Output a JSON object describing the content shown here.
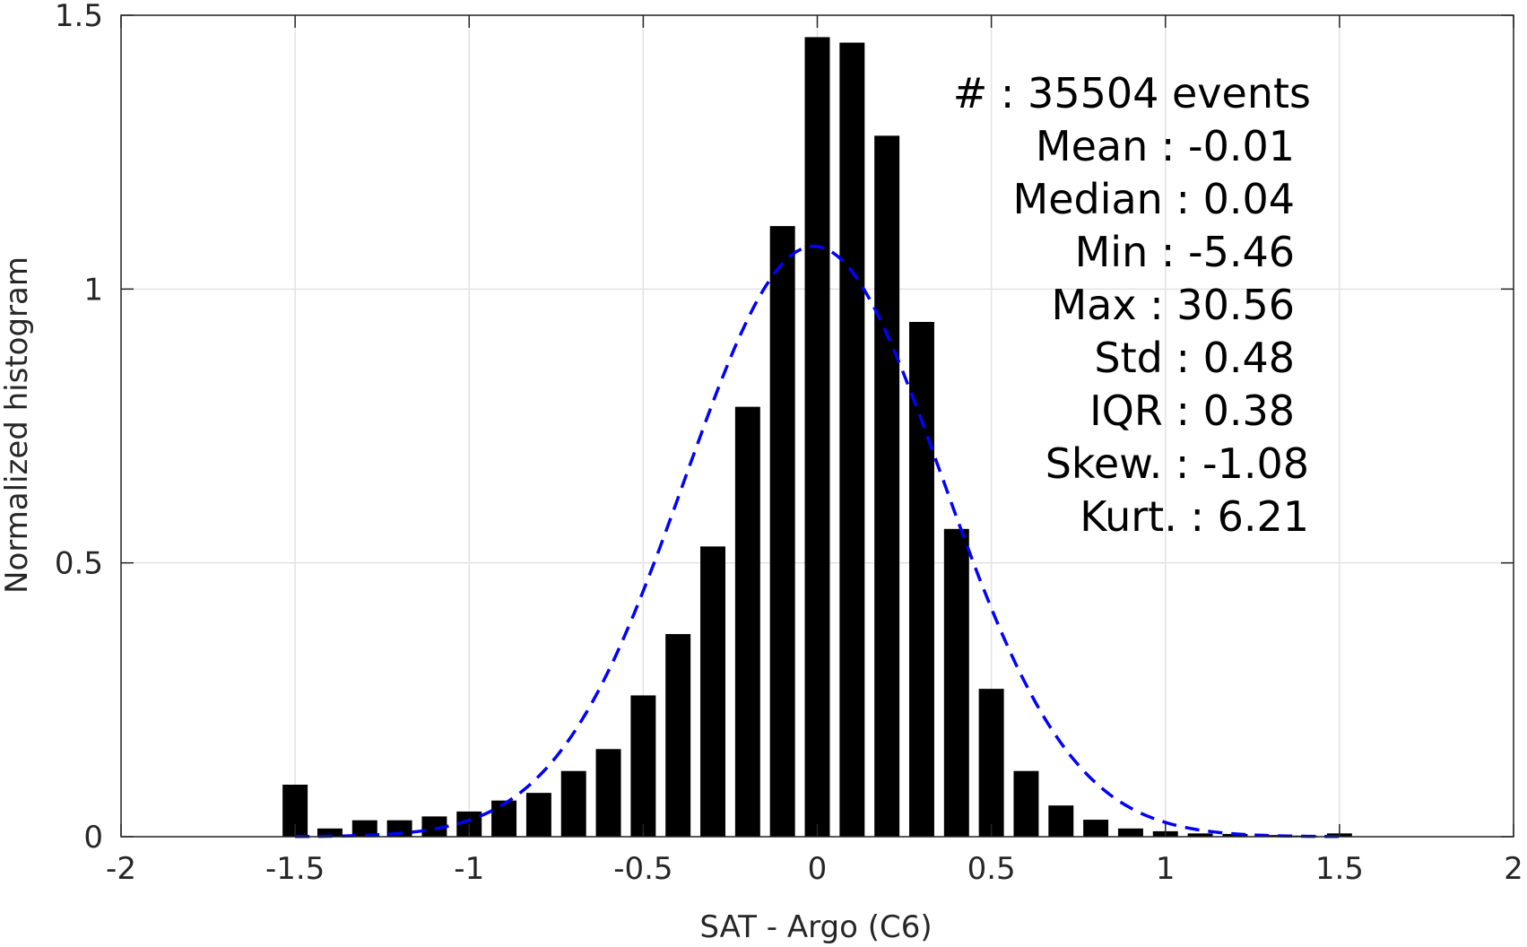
{
  "chart_data": {
    "type": "bar",
    "xlabel": "SAT - Argo (C6)",
    "ylabel": "Normalized histogram",
    "xlim": [
      -2,
      2
    ],
    "ylim": [
      0,
      1.5
    ],
    "xticks": [
      -2,
      -1.5,
      -1,
      -0.5,
      0,
      0.5,
      1,
      1.5,
      2
    ],
    "xtick_labels": [
      "-2",
      "-1.5",
      "-1",
      "-0.5",
      "0",
      "0.5",
      "1",
      "1.5",
      "2"
    ],
    "yticks": [
      0,
      0.5,
      1,
      1.5
    ],
    "ytick_labels": [
      "0",
      "0.5",
      "1",
      "1.5"
    ],
    "grid": true,
    "bin_width": 0.1,
    "bar_color": "#000000",
    "fit_color": "#0000ff",
    "bars": {
      "x": [
        -1.5,
        -1.4,
        -1.3,
        -1.2,
        -1.1,
        -1.0,
        -0.9,
        -0.8,
        -0.7,
        -0.6,
        -0.5,
        -0.4,
        -0.3,
        -0.2,
        -0.1,
        0.0,
        0.1,
        0.2,
        0.3,
        0.4,
        0.5,
        0.6,
        0.7,
        0.8,
        0.9,
        1.0,
        1.1,
        1.2,
        1.3,
        1.4,
        1.5
      ],
      "values": [
        0.095,
        0.015,
        0.03,
        0.03,
        0.037,
        0.046,
        0.066,
        0.08,
        0.12,
        0.16,
        0.258,
        0.37,
        0.53,
        0.785,
        1.115,
        1.46,
        1.45,
        1.28,
        0.94,
        0.562,
        0.27,
        0.12,
        0.057,
        0.031,
        0.015,
        0.01,
        0.006,
        0.005,
        0.003,
        0.002,
        0.006
      ]
    },
    "fit_curve": {
      "style": "dashed",
      "mean": -0.01,
      "std": 0.37,
      "x_range": [
        -1.5,
        1.5
      ]
    },
    "annotations": [
      {
        "label": "#  :",
        "value": "35504 events"
      },
      {
        "label": "Mean :",
        "value": "-0.01"
      },
      {
        "label": "Median :",
        "value": "0.04"
      },
      {
        "label": "Min :",
        "value": "-5.46"
      },
      {
        "label": "Max :",
        "value": "30.56"
      },
      {
        "label": "Std :",
        "value": "0.48"
      },
      {
        "label": "IQR :",
        "value": "0.38"
      },
      {
        "label": "Skew. :",
        "value": "-1.08"
      },
      {
        "label": "Kurt. :",
        "value": "6.21"
      }
    ]
  }
}
